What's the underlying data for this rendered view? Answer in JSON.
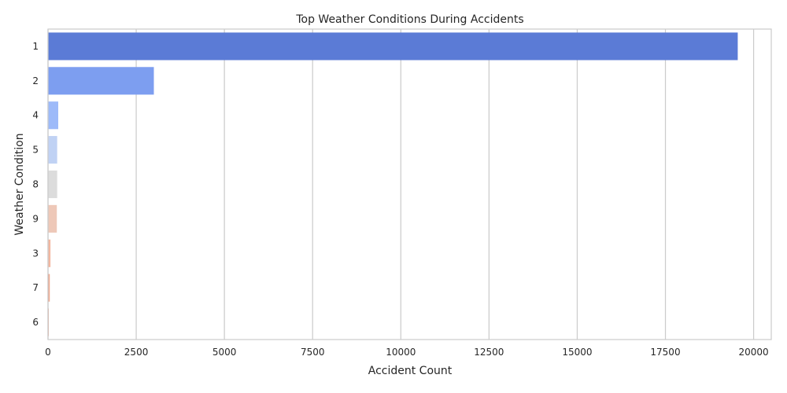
{
  "chart_data": {
    "type": "bar",
    "orientation": "horizontal",
    "title": "Top Weather Conditions During Accidents",
    "xlabel": "Accident Count",
    "ylabel": "Weather Condition",
    "categories": [
      "1",
      "2",
      "4",
      "5",
      "8",
      "9",
      "3",
      "7",
      "6"
    ],
    "values": [
      19550,
      3000,
      290,
      260,
      260,
      250,
      70,
      50,
      20
    ],
    "colors": [
      "#5b7bd6",
      "#7d9ef0",
      "#9dbaf9",
      "#c0d2f4",
      "#dcdcdc",
      "#eec8b8",
      "#f3b7a0",
      "#eea98f",
      "#e49b83"
    ],
    "xlim": [
      0,
      20500
    ],
    "xticks": [
      0,
      2500,
      5000,
      7500,
      10000,
      12500,
      15000,
      17500,
      20000
    ],
    "xtick_labels": [
      "0",
      "2500",
      "5000",
      "7500",
      "10000",
      "12500",
      "15000",
      "17500",
      "20000"
    ],
    "grid": true,
    "legend": "none"
  }
}
